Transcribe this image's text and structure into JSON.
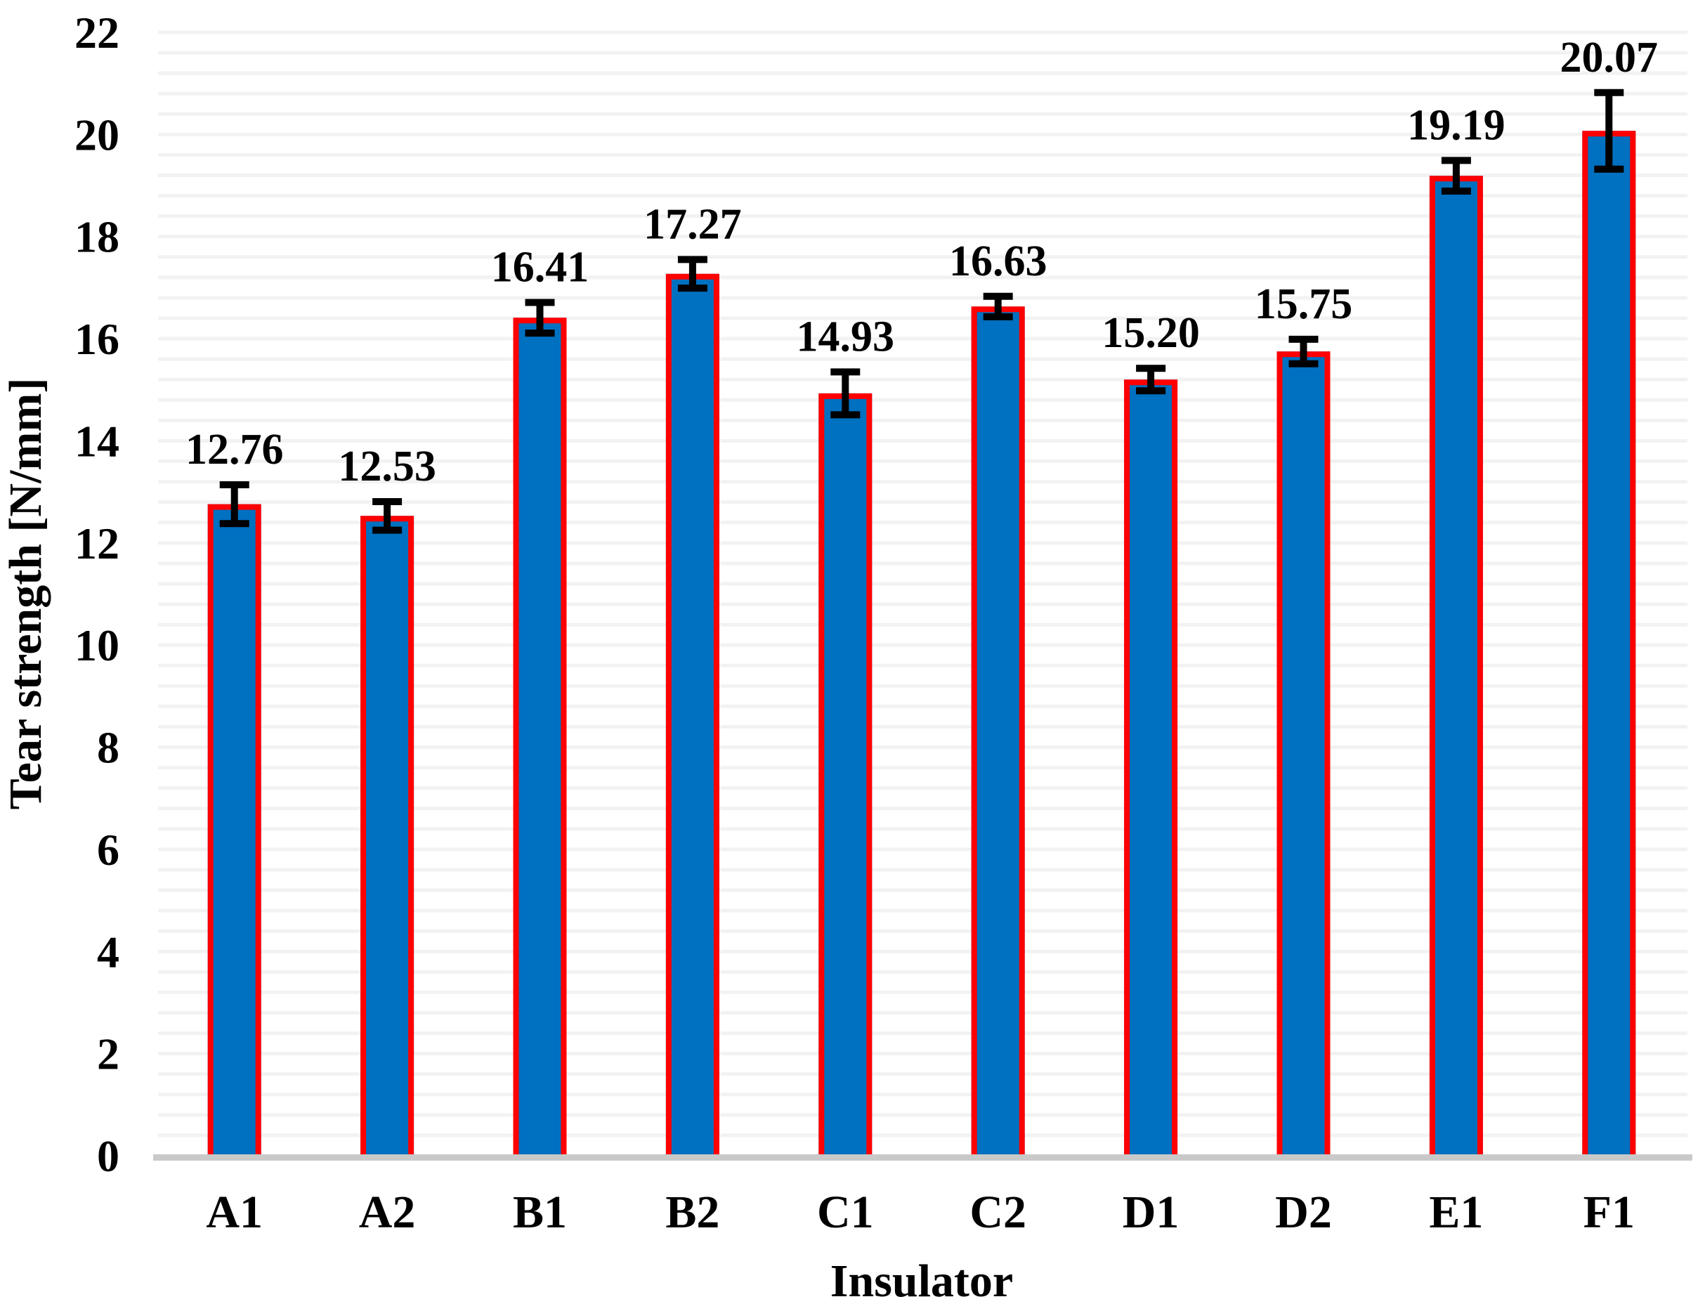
{
  "chart_data": {
    "type": "bar",
    "title": "",
    "xlabel": "Insulator",
    "ylabel": "Tear strength [N/mm]",
    "categories": [
      "A1",
      "A2",
      "B1",
      "B2",
      "C1",
      "C2",
      "D1",
      "D2",
      "E1",
      "F1"
    ],
    "values": [
      12.76,
      12.53,
      16.41,
      17.27,
      14.93,
      16.63,
      15.2,
      15.75,
      19.19,
      20.07
    ],
    "value_labels": [
      "12.76",
      "12.53",
      "16.41",
      "17.27",
      "14.93",
      "16.63",
      "15.20",
      "15.75",
      "19.19",
      "20.07"
    ],
    "error_bars": [
      0.38,
      0.28,
      0.3,
      0.28,
      0.42,
      0.2,
      0.22,
      0.24,
      0.3,
      0.75
    ],
    "ylim": [
      0,
      22
    ],
    "y_major_unit": 2,
    "y_minor_unit": 0.4,
    "y_tick_labels": [
      "0",
      "2",
      "4",
      "6",
      "8",
      "10",
      "12",
      "14",
      "16",
      "18",
      "20",
      "22"
    ],
    "grid": "minor-horizontal",
    "legend": "none",
    "colors": {
      "bar_fill": "#0070C0",
      "bar_border": "#FF0000",
      "error_bar": "#000000",
      "gridline": "#F2F2F2",
      "axis_line": "#C9C9C9",
      "text": "#000000",
      "background": "#FFFFFF"
    }
  }
}
